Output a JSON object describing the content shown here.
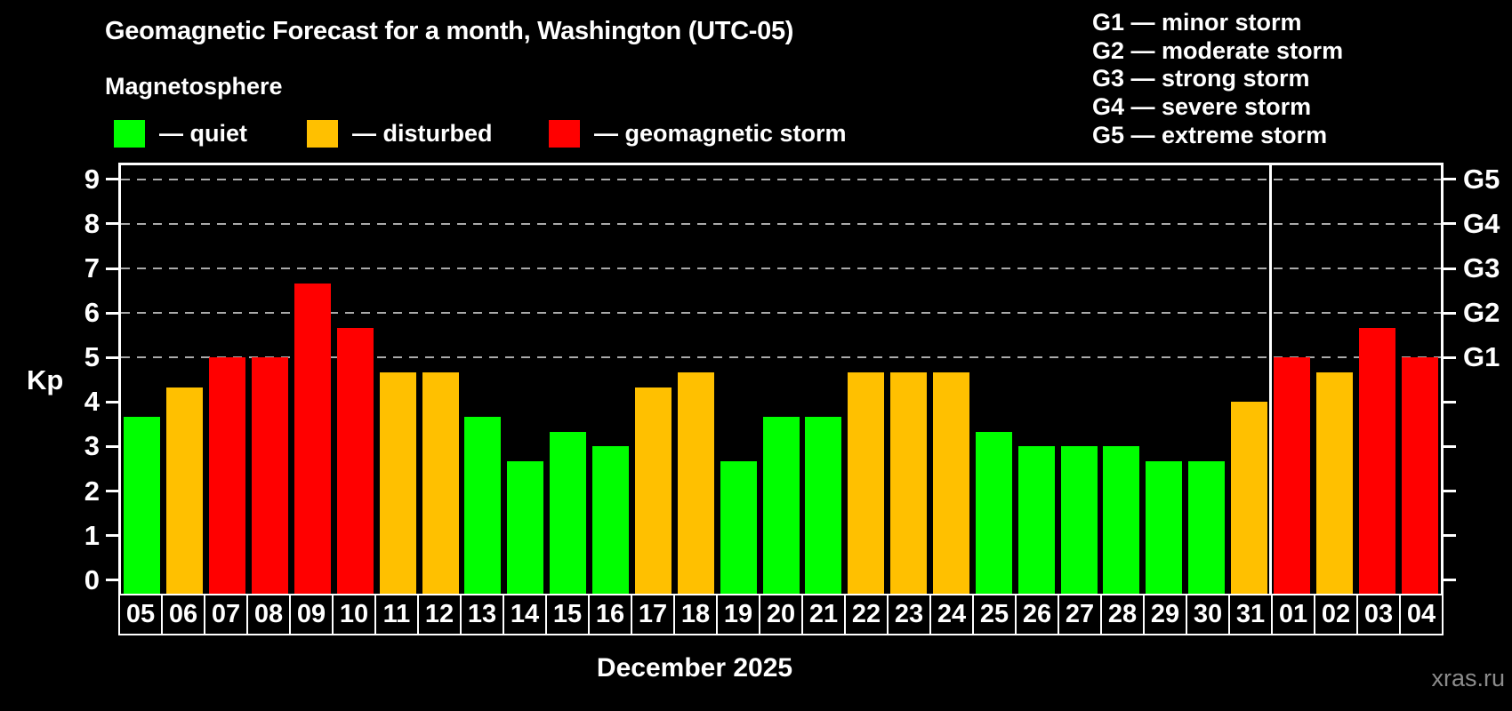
{
  "header": {
    "title": "Geomagnetic Forecast for a month, Washington (UTC-05)",
    "subtitle": "Magnetosphere"
  },
  "legend": {
    "items": [
      {
        "key": "quiet",
        "label": "— quiet",
        "color": "#00ff00",
        "x": 128
      },
      {
        "key": "disturbed",
        "label": "— disturbed",
        "color": "#ffc000",
        "x": 345
      },
      {
        "key": "storm",
        "label": "— geomagnetic storm",
        "color": "#ff0000",
        "x": 617
      }
    ]
  },
  "g_scale_legend": [
    "G1 — minor storm",
    "G2 — moderate storm",
    "G3 — strong storm",
    "G4 — severe storm",
    "G5 — extreme storm"
  ],
  "axes": {
    "y_title": "Kp",
    "y_ticks": [
      0,
      1,
      2,
      3,
      4,
      5,
      6,
      7,
      8,
      9
    ],
    "right_tick_labels": {
      "5": "G1",
      "6": "G2",
      "7": "G3",
      "8": "G4",
      "9": "G5"
    },
    "x_title": "December 2025"
  },
  "footer": {
    "watermark": "xras.ru"
  },
  "chart_data": {
    "type": "bar",
    "title": "Geomagnetic Forecast for a month, Washington (UTC-05)",
    "subtitle": "Magnetosphere",
    "xlabel": "December 2025",
    "ylabel": "Kp",
    "ylim": [
      -0.3,
      9.4
    ],
    "grid_levels": [
      5,
      6,
      7,
      8,
      9
    ],
    "grid_level_names": [
      "G1",
      "G2",
      "G3",
      "G4",
      "G5"
    ],
    "legend_position": "top-left",
    "categories": [
      "05",
      "06",
      "07",
      "08",
      "09",
      "10",
      "11",
      "12",
      "13",
      "14",
      "15",
      "16",
      "17",
      "18",
      "19",
      "20",
      "21",
      "22",
      "23",
      "24",
      "25",
      "26",
      "27",
      "28",
      "29",
      "30",
      "31",
      "01",
      "02",
      "03",
      "04"
    ],
    "values": [
      3.67,
      4.33,
      5,
      5,
      6.67,
      5.67,
      4.67,
      4.67,
      3.67,
      2.67,
      3.33,
      3,
      4.33,
      4.67,
      2.67,
      3.67,
      3.67,
      4.67,
      4.67,
      4.67,
      3.33,
      3,
      3,
      3,
      2.67,
      2.67,
      4,
      5,
      4.67,
      5.67,
      5
    ],
    "statuses": [
      "quiet",
      "disturbed",
      "storm",
      "storm",
      "storm",
      "storm",
      "disturbed",
      "disturbed",
      "quiet",
      "quiet",
      "quiet",
      "quiet",
      "disturbed",
      "disturbed",
      "quiet",
      "quiet",
      "quiet",
      "disturbed",
      "disturbed",
      "disturbed",
      "quiet",
      "quiet",
      "quiet",
      "quiet",
      "quiet",
      "quiet",
      "disturbed",
      "storm",
      "disturbed",
      "storm",
      "storm"
    ],
    "colors": {
      "quiet": "#00ff00",
      "disturbed": "#ffc000",
      "storm": "#ff0000"
    },
    "month_separator_after_index": 26
  }
}
